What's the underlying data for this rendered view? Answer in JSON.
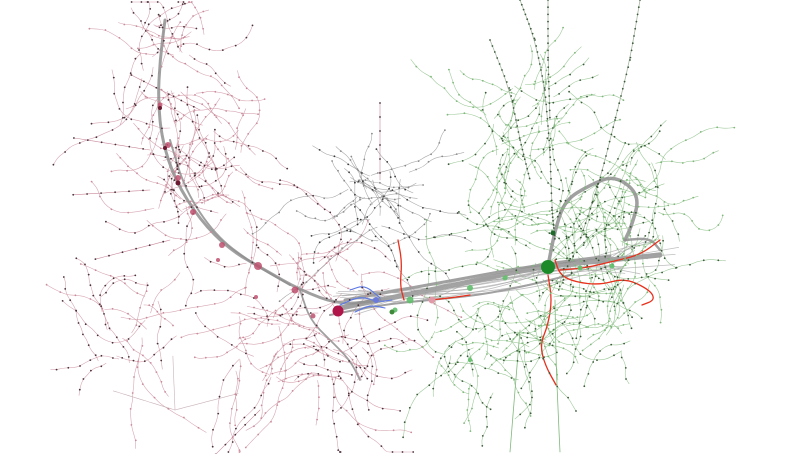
{
  "view": {
    "background": "#ffffff"
  },
  "palette": {
    "left_cluster": "#c98a9a",
    "left_cluster_dark": "#4a3038",
    "right_cluster": "#7fb87a",
    "right_cluster_dark": "#3a5a38",
    "trunk": "#8f8f8f",
    "hub_left": "#b0154a",
    "hub_right": "#1d8a2a",
    "highlight_path": "#e8301c",
    "bridge_path": "#5a78e8",
    "top_trunk": "#9a9a9a"
  }
}
